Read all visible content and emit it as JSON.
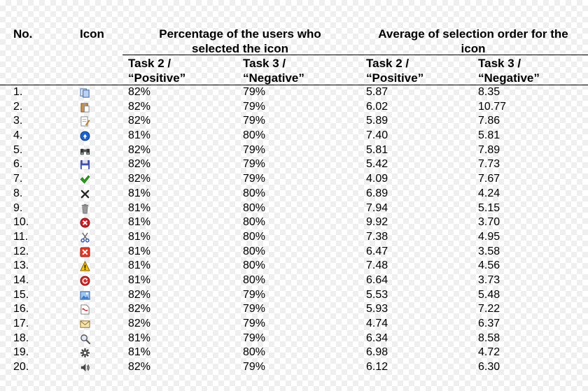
{
  "header": {
    "no": "No.",
    "icon": "Icon",
    "percentage_group": [
      "Percentage of the users who",
      "selected the icon"
    ],
    "average_group": [
      "Average of selection order for the",
      "icon"
    ],
    "task2": [
      "Task 2 /",
      "“Positive”"
    ],
    "task3": [
      "Task 3 /",
      "“Negative”"
    ]
  },
  "rows": [
    {
      "no": "1.",
      "icon": "copy-documents-icon",
      "pct_task2": "82%",
      "pct_task3": "79%",
      "avg_task2": "5.87",
      "avg_task3": "8.35"
    },
    {
      "no": "2.",
      "icon": "paste-clipboard-icon",
      "pct_task2": "82%",
      "pct_task3": "79%",
      "avg_task2": "6.02",
      "avg_task3": "10.77"
    },
    {
      "no": "3.",
      "icon": "edit-document-icon",
      "pct_task2": "82%",
      "pct_task3": "79%",
      "avg_task2": "5.89",
      "avg_task3": "7.86"
    },
    {
      "no": "4.",
      "icon": "blue-circle-arrow-icon",
      "pct_task2": "81%",
      "pct_task3": "80%",
      "avg_task2": "7.40",
      "avg_task3": "5.81"
    },
    {
      "no": "5.",
      "icon": "binoculars-icon",
      "pct_task2": "82%",
      "pct_task3": "79%",
      "avg_task2": "5.81",
      "avg_task3": "7.89"
    },
    {
      "no": "6.",
      "icon": "floppy-disk-icon",
      "pct_task2": "82%",
      "pct_task3": "79%",
      "avg_task2": "5.42",
      "avg_task3": "7.73"
    },
    {
      "no": "7.",
      "icon": "green-checkmark-icon",
      "pct_task2": "82%",
      "pct_task3": "79%",
      "avg_task2": "4.09",
      "avg_task3": "7.67"
    },
    {
      "no": "8.",
      "icon": "black-x-icon",
      "pct_task2": "81%",
      "pct_task3": "80%",
      "avg_task2": "6.89",
      "avg_task3": "4.24"
    },
    {
      "no": "9.",
      "icon": "trash-can-icon",
      "pct_task2": "81%",
      "pct_task3": "80%",
      "avg_task2": "7.94",
      "avg_task3": "5.15"
    },
    {
      "no": "10.",
      "icon": "red-circle-x-icon",
      "pct_task2": "81%",
      "pct_task3": "80%",
      "avg_task2": "9.92",
      "avg_task3": "3.70"
    },
    {
      "no": "11.",
      "icon": "scissors-icon",
      "pct_task2": "81%",
      "pct_task3": "80%",
      "avg_task2": "7.38",
      "avg_task3": "4.95"
    },
    {
      "no": "12.",
      "icon": "red-square-x-icon",
      "pct_task2": "81%",
      "pct_task3": "80%",
      "avg_task2": "6.47",
      "avg_task3": "3.58"
    },
    {
      "no": "13.",
      "icon": "warning-triangle-icon",
      "pct_task2": "81%",
      "pct_task3": "80%",
      "avg_task2": "7.48",
      "avg_task3": "4.56"
    },
    {
      "no": "14.",
      "icon": "red-circle-refresh-icon",
      "pct_task2": "81%",
      "pct_task3": "80%",
      "avg_task2": "6.64",
      "avg_task3": "3.73"
    },
    {
      "no": "15.",
      "icon": "picture-icon",
      "pct_task2": "82%",
      "pct_task3": "79%",
      "avg_task2": "5.53",
      "avg_task3": "5.48"
    },
    {
      "no": "16.",
      "icon": "pdf-document-icon",
      "pct_task2": "82%",
      "pct_task3": "79%",
      "avg_task2": "5.93",
      "avg_task3": "7.22"
    },
    {
      "no": "17.",
      "icon": "envelope-icon",
      "pct_task2": "82%",
      "pct_task3": "79%",
      "avg_task2": "4.74",
      "avg_task3": "6.37"
    },
    {
      "no": "18.",
      "icon": "magnifier-icon",
      "pct_task2": "81%",
      "pct_task3": "79%",
      "avg_task2": "6.34",
      "avg_task3": "8.58"
    },
    {
      "no": "19.",
      "icon": "gear-icon",
      "pct_task2": "81%",
      "pct_task3": "80%",
      "avg_task2": "6.98",
      "avg_task3": "4.72"
    },
    {
      "no": "20.",
      "icon": "speaker-icon",
      "pct_task2": "82%",
      "pct_task3": "79%",
      "avg_task2": "6.12",
      "avg_task3": "6.30"
    }
  ]
}
